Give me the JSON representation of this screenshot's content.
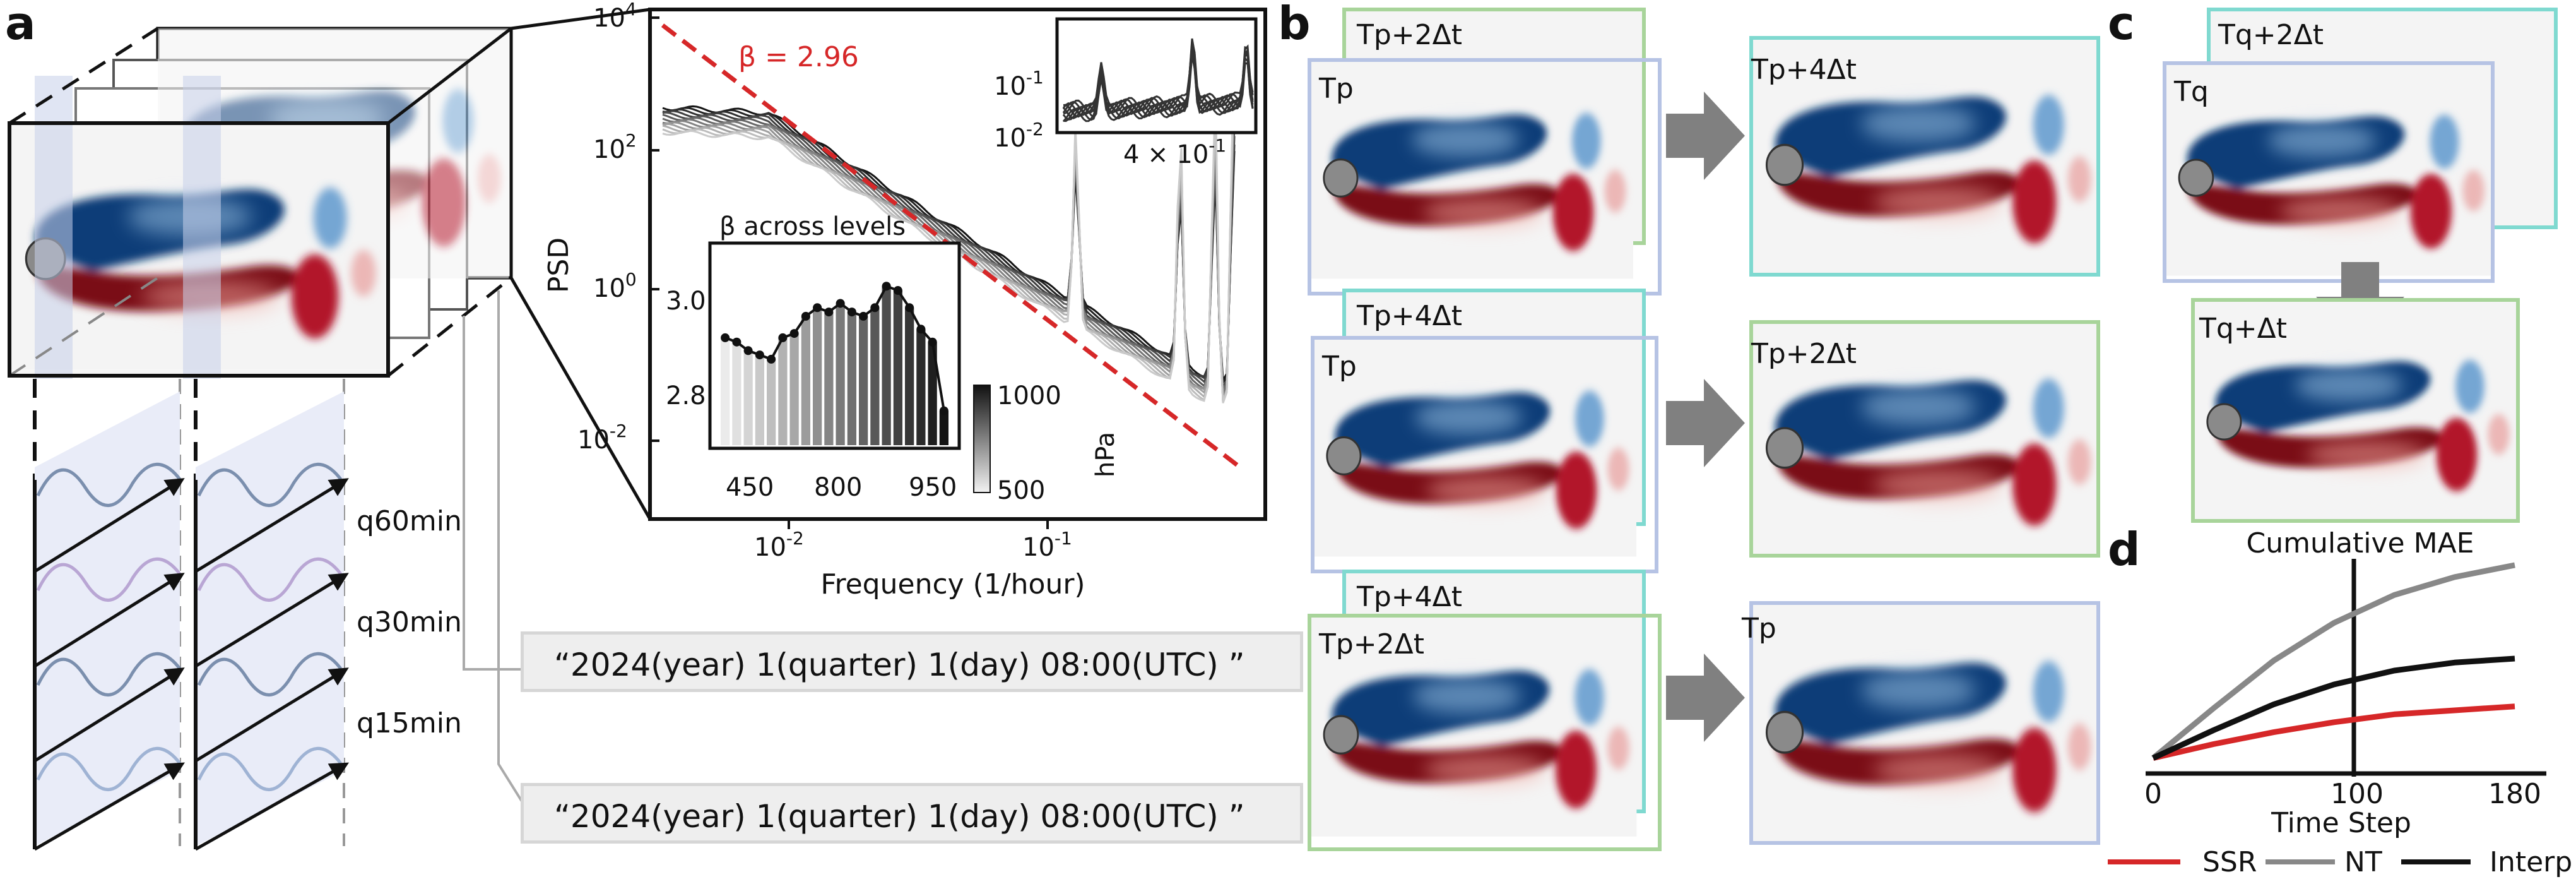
{
  "panels": {
    "a": "a",
    "b": "b",
    "c": "c",
    "d": "d"
  },
  "panel_a": {
    "series_labels": [
      "q60min",
      "q30min",
      "q15min"
    ],
    "time_strings": [
      "“2024(year) 1(quarter)  1(day)  08:00(UTC) ”",
      "“2024(year) 1(quarter)  1(day)  08:00(UTC) ”"
    ]
  },
  "psd_chart": {
    "ylabel": "PSD",
    "xlabel": "Frequency (1/hour)",
    "beta_label": "β = 2.96",
    "yticks": [
      "10",
      "10",
      "10",
      "10"
    ],
    "ytick_exp": [
      "4",
      "2",
      "0",
      "-2"
    ],
    "xticks": [
      "10",
      "10"
    ],
    "xtick_exp": [
      "-2",
      "-1"
    ],
    "colors": {
      "fit": "#d62728",
      "lines": "#111111"
    }
  },
  "inset_zoom": {
    "yticks": [
      "10",
      "10"
    ],
    "ytick_exp": [
      "-1",
      "-2"
    ],
    "xtick": "4 × 10",
    "xtick_exp": "-1"
  },
  "chart_data": [
    {
      "type": "bar",
      "title": "β across levels",
      "xtick_labels": [
        "450",
        "800",
        "950"
      ],
      "ytick_labels": [
        "2.8",
        "3.0"
      ],
      "ylim": [
        2.68,
        3.14
      ],
      "values": [
        2.93,
        2.92,
        2.9,
        2.89,
        2.88,
        2.93,
        2.94,
        2.98,
        3.0,
        2.99,
        3.01,
        2.99,
        2.98,
        3.0,
        3.05,
        3.04,
        3.0,
        2.95,
        2.92,
        2.76
      ],
      "colorbar": {
        "label": "hPa",
        "ticks": [
          "1000",
          "500"
        ]
      }
    },
    {
      "type": "line",
      "title": "Cumulative MAE",
      "xlabel": "Time Step",
      "xtick_labels": [
        "0",
        "100",
        "180"
      ],
      "x": [
        0,
        30,
        60,
        90,
        120,
        150,
        180
      ],
      "xlim": [
        -5,
        195
      ],
      "ylim": [
        0,
        1
      ],
      "series": [
        {
          "name": "SSR",
          "color": "#d62728",
          "values": [
            0.03,
            0.1,
            0.16,
            0.21,
            0.25,
            0.27,
            0.29
          ]
        },
        {
          "name": "NT",
          "color": "#888888",
          "values": [
            0.03,
            0.28,
            0.52,
            0.71,
            0.85,
            0.94,
            1.0
          ]
        },
        {
          "name": "Interp",
          "color": "#111111",
          "values": [
            0.03,
            0.17,
            0.3,
            0.4,
            0.47,
            0.51,
            0.53
          ]
        }
      ],
      "legend": "bottom"
    }
  ],
  "panel_b": {
    "rows": [
      {
        "back": "Tp+2Δt",
        "front": "Tp",
        "result": "Tp+4Δt"
      },
      {
        "back": "Tp+4Δt",
        "front": "Tp",
        "result": "Tp+2Δt"
      },
      {
        "back": "Tp+4Δt",
        "front": "Tp+2Δt",
        "result": "Tp"
      }
    ]
  },
  "panel_c": {
    "back": "Tq+2Δt",
    "front": "Tq",
    "result": "Tq+Δt"
  }
}
